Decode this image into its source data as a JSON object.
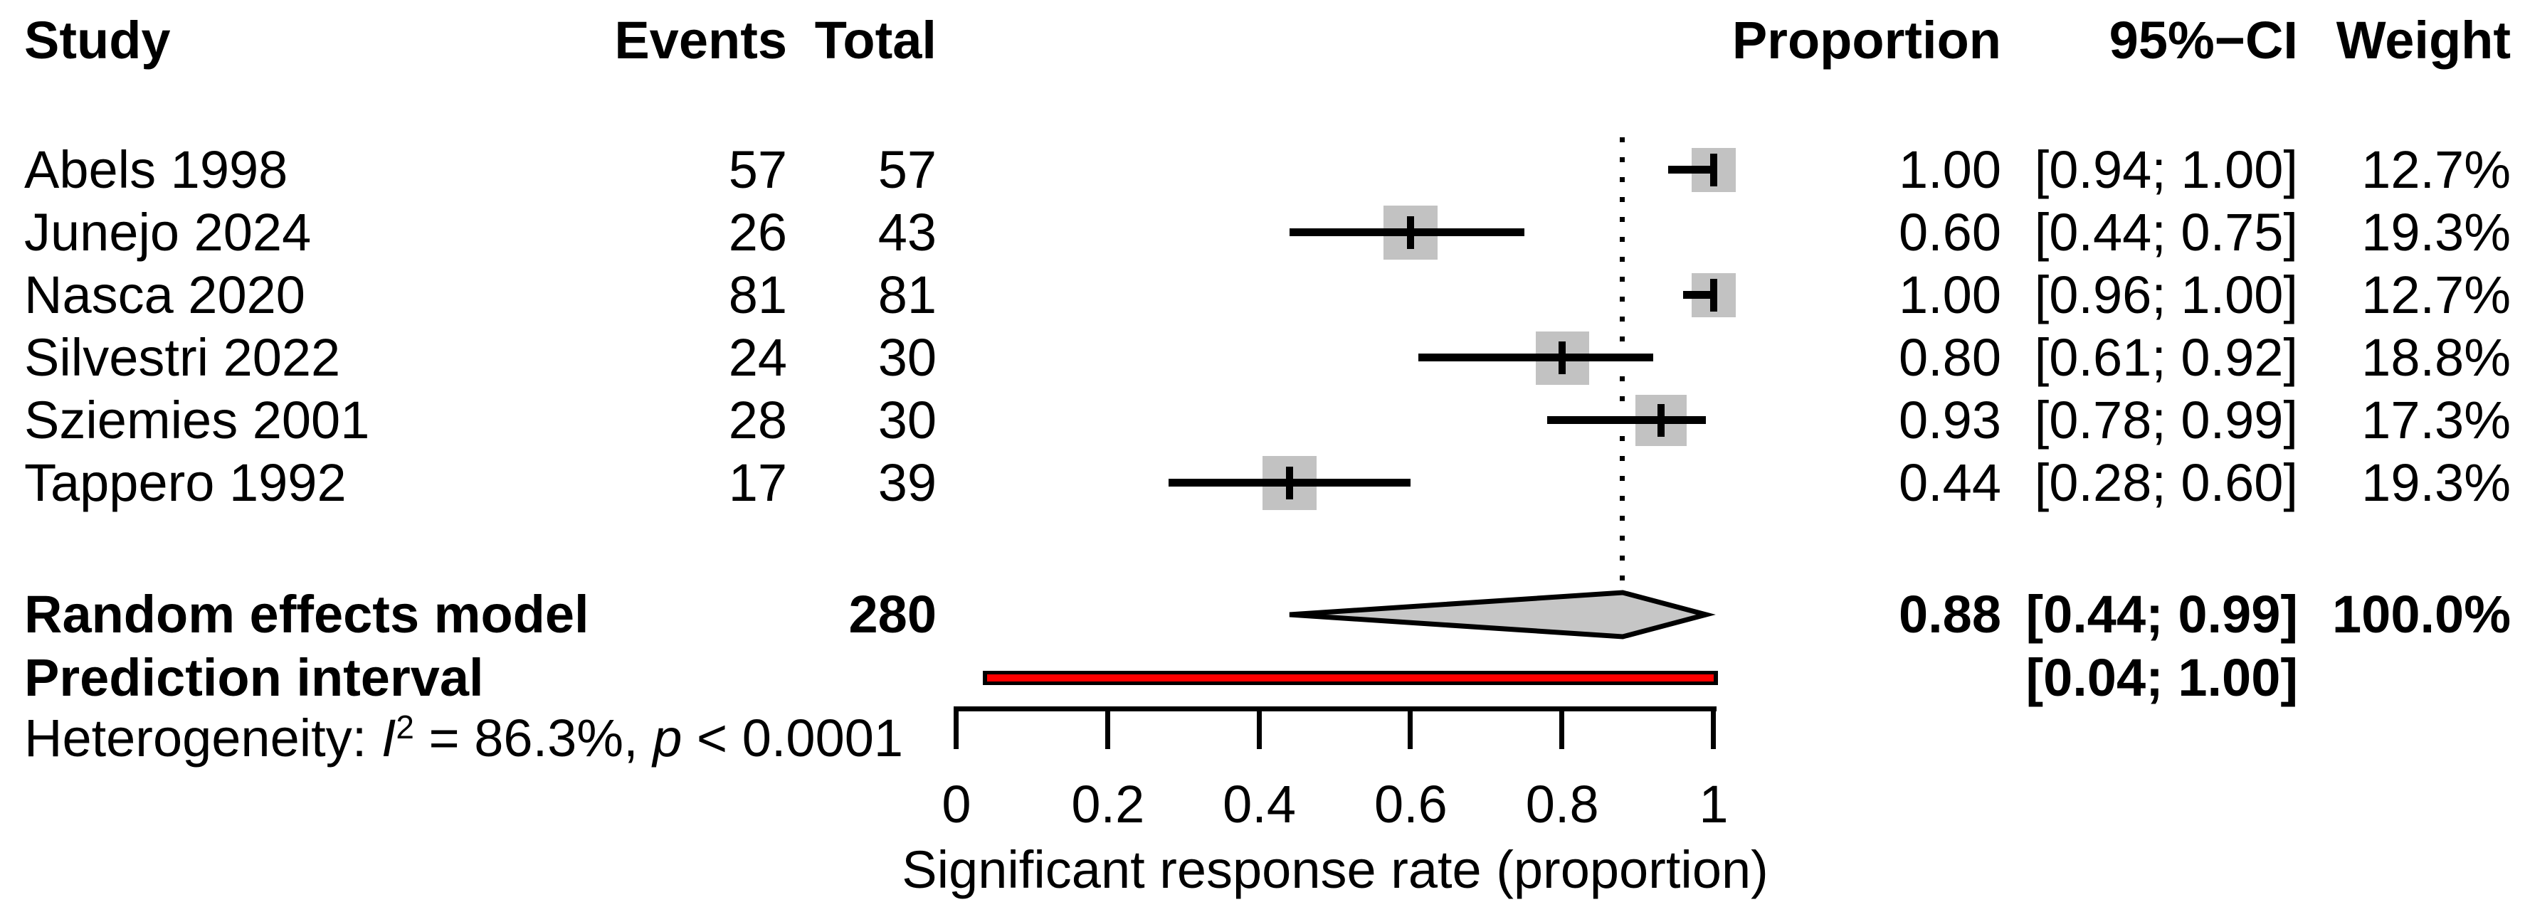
{
  "colors": {
    "square": "#c2c2c2",
    "diamond_fill": "#c6c6c6",
    "diamond_border": "#000000",
    "prediction_fill": "#fe0000",
    "prediction_border": "#000000",
    "reference_line": "#000000",
    "marker_line": "#000000",
    "text": "#000000",
    "background": "#ffffff"
  },
  "chart_data": {
    "type": "forest",
    "xlabel": "Significant response rate (proportion)",
    "xlim": [
      0,
      1
    ],
    "x_ticks": [
      0,
      0.2,
      0.4,
      0.6,
      0.8,
      1
    ],
    "x_tick_labels": [
      "0",
      "0.2",
      "0.4",
      "0.6",
      "0.8",
      "1"
    ],
    "reference_line": 0.88,
    "columns": {
      "study": "Study",
      "events": "Events",
      "total": "Total",
      "proportion": "Proportion",
      "ci": "95%−CI",
      "weight": "Weight"
    },
    "studies": [
      {
        "study": "Abels 1998",
        "events": "57",
        "total": "57",
        "proportion": "1.00",
        "ci_text": "[0.94; 1.00]",
        "weight": "12.7%",
        "estimate": 1.0,
        "ci_low": 0.94,
        "ci_high": 1.0,
        "weight_value": 12.7
      },
      {
        "study": "Junejo 2024",
        "events": "26",
        "total": "43",
        "proportion": "0.60",
        "ci_text": "[0.44; 0.75]",
        "weight": "19.3%",
        "estimate": 0.6,
        "ci_low": 0.44,
        "ci_high": 0.75,
        "weight_value": 19.3
      },
      {
        "study": "Nasca 2020",
        "events": "81",
        "total": "81",
        "proportion": "1.00",
        "ci_text": "[0.96; 1.00]",
        "weight": "12.7%",
        "estimate": 1.0,
        "ci_low": 0.96,
        "ci_high": 1.0,
        "weight_value": 12.7
      },
      {
        "study": "Silvestri 2022",
        "events": "24",
        "total": "30",
        "proportion": "0.80",
        "ci_text": "[0.61; 0.92]",
        "weight": "18.8%",
        "estimate": 0.8,
        "ci_low": 0.61,
        "ci_high": 0.92,
        "weight_value": 18.8
      },
      {
        "study": "Sziemies 2001",
        "events": "28",
        "total": "30",
        "proportion": "0.93",
        "ci_text": "[0.78; 0.99]",
        "weight": "17.3%",
        "estimate": 0.93,
        "ci_low": 0.78,
        "ci_high": 0.99,
        "weight_value": 17.3
      },
      {
        "study": "Tappero 1992",
        "events": "17",
        "total": "39",
        "proportion": "0.44",
        "ci_text": "[0.28; 0.60]",
        "weight": "19.3%",
        "estimate": 0.44,
        "ci_low": 0.28,
        "ci_high": 0.6,
        "weight_value": 19.3
      }
    ],
    "summary": {
      "label": "Random effects model",
      "total": "280",
      "proportion": "0.88",
      "ci_text": "[0.44; 0.99]",
      "weight": "100.0%",
      "estimate": 0.88,
      "ci_low": 0.44,
      "ci_high": 0.99
    },
    "prediction_interval": {
      "label": "Prediction interval",
      "ci_text": "[0.04; 1.00]",
      "ci_low": 0.04,
      "ci_high": 1.0
    },
    "heterogeneity": {
      "prefix": "Heterogeneity: ",
      "stat_symbol": "I",
      "stat_sup": "2",
      "stat_rest": " = 86.3%, ",
      "p_symbol": "p",
      "p_rest": " < 0.0001"
    }
  }
}
